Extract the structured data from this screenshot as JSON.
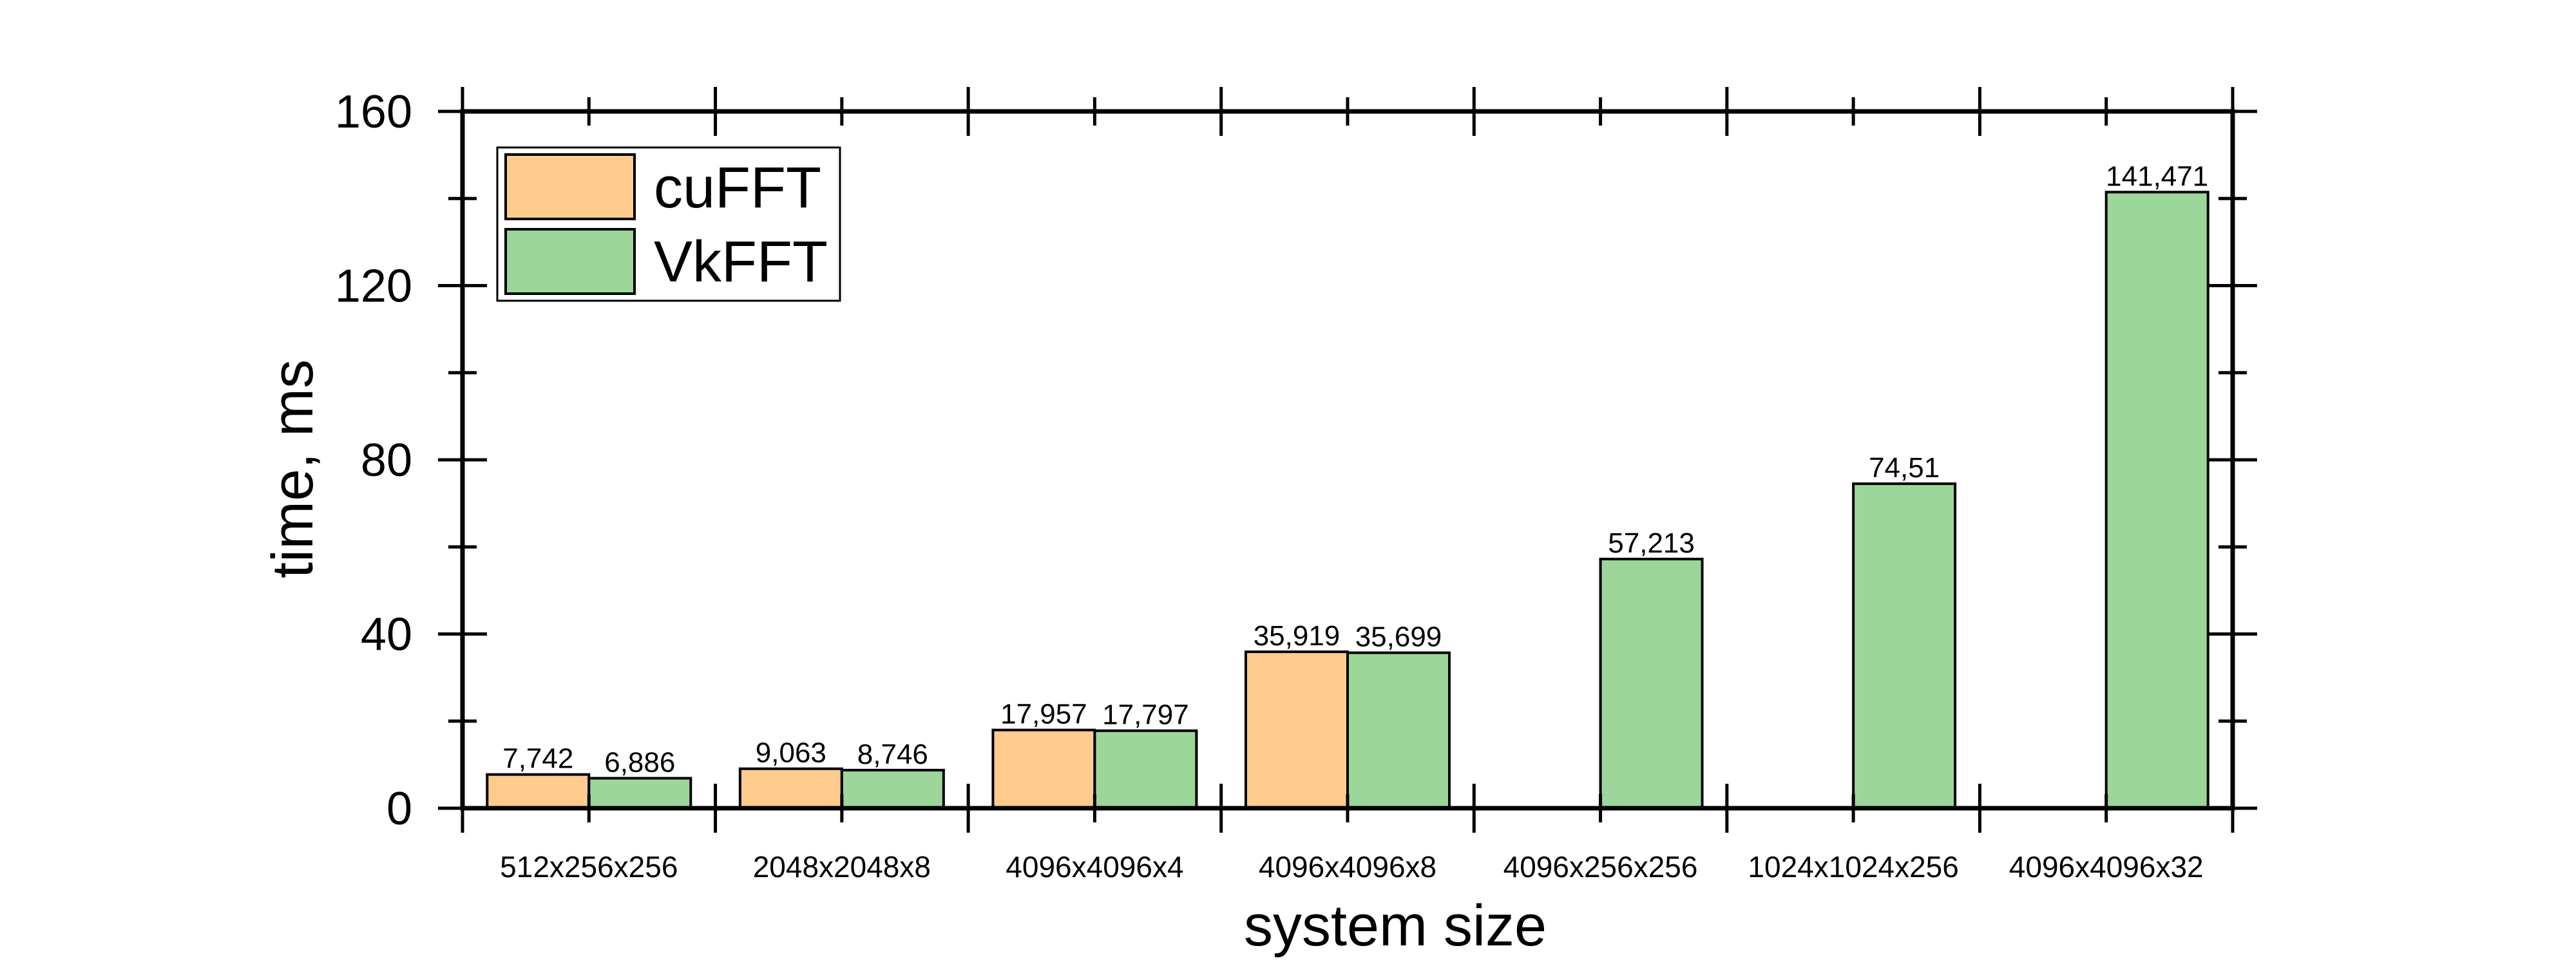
{
  "chart_data": {
    "type": "bar",
    "xlabel": "system size",
    "ylabel": "time, ms",
    "ylim": [
      0,
      160
    ],
    "yticks": [
      0,
      40,
      80,
      120,
      160
    ],
    "grid": false,
    "legend_position": "top-left",
    "categories": [
      "512x256x256",
      "2048x2048x8",
      "4096x4096x4",
      "4096x4096x8",
      "4096x256x256",
      "1024x1024x256",
      "4096x4096x32"
    ],
    "series": [
      {
        "name": "cuFFT",
        "color": "#ffcc8e",
        "values": [
          7.742,
          9.063,
          17.957,
          35.919,
          null,
          null,
          null
        ],
        "labels": [
          "7,742",
          "9,063",
          "17,957",
          "35,919",
          "",
          "",
          ""
        ]
      },
      {
        "name": "VkFFT",
        "color": "#9dd69a",
        "values": [
          6.886,
          8.746,
          17.797,
          35.699,
          57.213,
          74.51,
          141.471
        ],
        "labels": [
          "6,886",
          "8,746",
          "17,797",
          "35,699",
          "57,213",
          "74,51",
          "141,471"
        ]
      }
    ]
  }
}
